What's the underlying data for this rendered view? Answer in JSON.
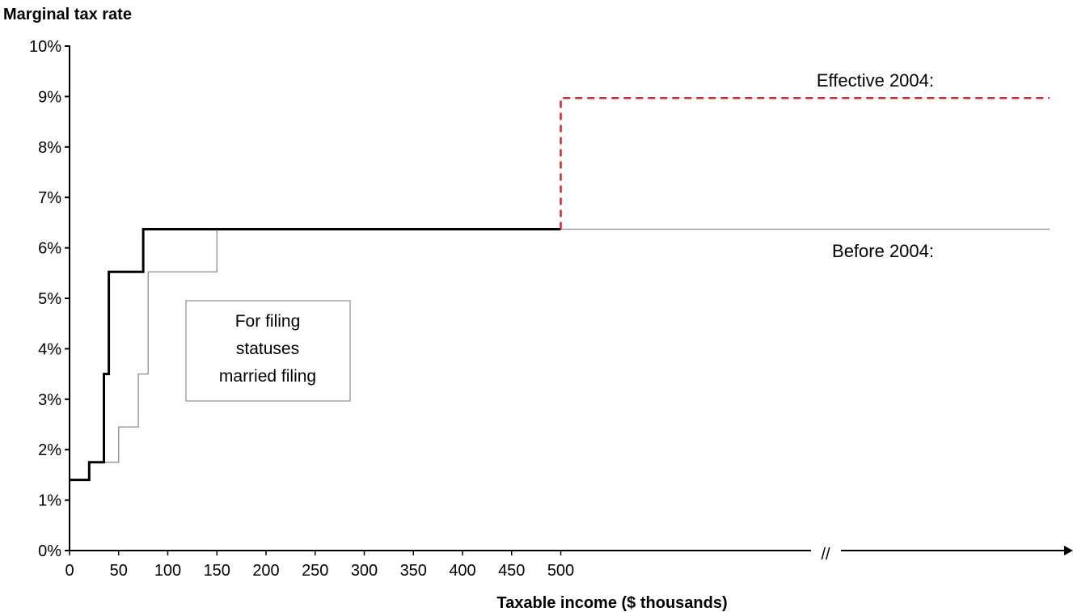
{
  "chart_data": {
    "type": "line",
    "ylabel": "Marginal tax rate",
    "xlabel": "Taxable income ($ thousands)",
    "y_ticks": [
      "0%",
      "1%",
      "2%",
      "3%",
      "4%",
      "5%",
      "6%",
      "7%",
      "8%",
      "9%",
      "10%"
    ],
    "x_ticks": [
      "0",
      "50",
      "100",
      "150",
      "200",
      "250",
      "300",
      "350",
      "400",
      "450",
      "500"
    ],
    "ylim": [
      0,
      10
    ],
    "axis_break_label": "//",
    "annotations": {
      "effective": "Effective 2004:",
      "before": "Before 2004:",
      "box_lines": [
        "For filing",
        "statuses",
        "married filing"
      ]
    },
    "series": [
      {
        "style": "solid-black-thick",
        "color": "#000000",
        "points": [
          [
            0,
            1.4
          ],
          [
            20,
            1.4
          ],
          [
            20,
            1.75
          ],
          [
            35,
            1.75
          ],
          [
            35,
            3.5
          ],
          [
            40,
            3.5
          ],
          [
            40,
            5.525
          ],
          [
            75,
            5.525
          ],
          [
            75,
            6.37
          ],
          [
            500,
            6.37
          ]
        ]
      },
      {
        "style": "solid-gray-thin",
        "color": "#8c8c8c",
        "points": [
          [
            35,
            1.75
          ],
          [
            50,
            1.75
          ],
          [
            50,
            2.45
          ],
          [
            70,
            2.45
          ],
          [
            70,
            3.5
          ],
          [
            80,
            3.5
          ],
          [
            80,
            5.525
          ],
          [
            150,
            5.525
          ],
          [
            150,
            6.37
          ]
        ]
      },
      {
        "style": "dashed-red",
        "color": "#d62728",
        "points": [
          [
            500,
            6.37
          ],
          [
            500,
            8.97
          ],
          [
            1000,
            8.97
          ]
        ]
      },
      {
        "style": "solid-gray-thin",
        "color": "#8c8c8c",
        "points": [
          [
            500,
            6.37
          ],
          [
            1000,
            6.37
          ]
        ]
      }
    ]
  }
}
